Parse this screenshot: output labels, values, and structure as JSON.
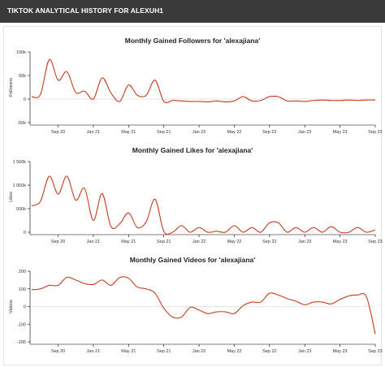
{
  "header": {
    "title": "TIKTOK ANALYTICAL HISTORY FOR ALEXUH1"
  },
  "colors": {
    "header_bg": "#3a3a3a",
    "series": "#c63c1b"
  },
  "chart_data": [
    {
      "type": "line",
      "title": "Monthly Gained Followers for 'alexajiana'",
      "ylabel": "Followers",
      "ylim": [
        -50000,
        100000
      ],
      "yticks": [
        -50000,
        0,
        50000,
        100000
      ],
      "ytick_labels": [
        "-50k",
        "0",
        "50k",
        "100k"
      ],
      "xlim": [
        "2020-06",
        "2023-09"
      ],
      "xticks": [
        "2020-09",
        "2021-01",
        "2021-05",
        "2021-09",
        "2022-01",
        "2022-05",
        "2022-09",
        "2023-01",
        "2023-05",
        "2023-09"
      ],
      "xtick_labels": [
        "Sep 20",
        "Jan 21",
        "May 21",
        "Sep 21",
        "Jan 22",
        "May 22",
        "Sep 22",
        "Jan 23",
        "May 23",
        "Sep 23"
      ],
      "series": [
        {
          "x": [
            "2020-06",
            "2020-07",
            "2020-08",
            "2020-09",
            "2020-10",
            "2020-11",
            "2020-12",
            "2021-01",
            "2021-02",
            "2021-03",
            "2021-04",
            "2021-05",
            "2021-06",
            "2021-07",
            "2021-08",
            "2021-09",
            "2021-10",
            "2021-11",
            "2021-12",
            "2022-01",
            "2022-02",
            "2022-03",
            "2022-04",
            "2022-05",
            "2022-06",
            "2022-07",
            "2022-08",
            "2022-09",
            "2022-10",
            "2022-11",
            "2022-12",
            "2023-01",
            "2023-02",
            "2023-03",
            "2023-04",
            "2023-05",
            "2023-06",
            "2023-07",
            "2023-08",
            "2023-09"
          ],
          "values": [
            5000,
            10000,
            84000,
            40000,
            58000,
            14000,
            17000,
            0,
            45000,
            13000,
            -5000,
            30000,
            8000,
            8000,
            40000,
            -5000,
            -3000,
            -4000,
            -5000,
            -5000,
            -6000,
            -4000,
            -6000,
            -4000,
            5000,
            -4000,
            -3000,
            5000,
            5000,
            -4000,
            -4000,
            -5000,
            -3000,
            -2000,
            -3000,
            -3000,
            -2000,
            -3000,
            -2000,
            -2000
          ]
        }
      ]
    },
    {
      "type": "line",
      "title": "Monthly Gained Likes for 'alexajiana'",
      "ylabel": "Likes",
      "ylim": [
        0,
        1500000
      ],
      "yticks": [
        0,
        500000,
        1000000,
        1500000
      ],
      "ytick_labels": [
        "0",
        "500k",
        "1 000k",
        "1 500k"
      ],
      "xlim": [
        "2020-06",
        "2023-09"
      ],
      "xticks": [
        "2020-09",
        "2021-01",
        "2021-05",
        "2021-09",
        "2022-01",
        "2022-05",
        "2022-09",
        "2023-01",
        "2023-05",
        "2023-09"
      ],
      "xtick_labels": [
        "Sep 20",
        "Jan 21",
        "May 21",
        "Sep 21",
        "Jan 22",
        "May 22",
        "Sep 22",
        "Jan 23",
        "May 23",
        "Sep 23"
      ],
      "series": [
        {
          "x": [
            "2020-06",
            "2020-07",
            "2020-08",
            "2020-09",
            "2020-10",
            "2020-11",
            "2020-12",
            "2021-01",
            "2021-02",
            "2021-03",
            "2021-04",
            "2021-05",
            "2021-06",
            "2021-07",
            "2021-08",
            "2021-09",
            "2021-10",
            "2021-11",
            "2021-12",
            "2022-01",
            "2022-02",
            "2022-03",
            "2022-04",
            "2022-05",
            "2022-06",
            "2022-07",
            "2022-08",
            "2022-09",
            "2022-10",
            "2022-11",
            "2022-12",
            "2023-01",
            "2023-02",
            "2023-03",
            "2023-04",
            "2023-05",
            "2023-06",
            "2023-07",
            "2023-08",
            "2023-09"
          ],
          "values": [
            560000,
            660000,
            1190000,
            810000,
            1190000,
            680000,
            930000,
            250000,
            820000,
            120000,
            180000,
            410000,
            100000,
            220000,
            700000,
            20000,
            0,
            140000,
            0,
            100000,
            0,
            20000,
            0,
            140000,
            0,
            100000,
            0,
            200000,
            200000,
            0,
            100000,
            0,
            100000,
            0,
            120000,
            0,
            0,
            100000,
            0,
            50000
          ]
        }
      ]
    },
    {
      "type": "line",
      "title": "Monthly Gained Videos for 'alexajiana'",
      "ylabel": "Videos",
      "ylim": [
        -200,
        200
      ],
      "yticks": [
        -200,
        -100,
        0,
        100,
        200
      ],
      "ytick_labels": [
        "-200",
        "-100",
        "0",
        "100",
        "200"
      ],
      "xlim": [
        "2020-06",
        "2023-09"
      ],
      "xticks": [
        "2020-09",
        "2021-01",
        "2021-05",
        "2021-09",
        "2022-01",
        "2022-05",
        "2022-09",
        "2023-01",
        "2023-05",
        "2023-09"
      ],
      "xtick_labels": [
        "Sep 20",
        "Jan 21",
        "May 21",
        "Sep 21",
        "Jan 22",
        "May 22",
        "Sep 22",
        "Jan 23",
        "May 23",
        "Sep 23"
      ],
      "series": [
        {
          "x": [
            "2020-06",
            "2020-07",
            "2020-08",
            "2020-09",
            "2020-10",
            "2020-11",
            "2020-12",
            "2021-01",
            "2021-02",
            "2021-03",
            "2021-04",
            "2021-05",
            "2021-06",
            "2021-07",
            "2021-08",
            "2021-09",
            "2021-10",
            "2021-11",
            "2021-12",
            "2022-01",
            "2022-02",
            "2022-03",
            "2022-04",
            "2022-05",
            "2022-06",
            "2022-07",
            "2022-08",
            "2022-09",
            "2022-10",
            "2022-11",
            "2022-12",
            "2023-01",
            "2023-02",
            "2023-03",
            "2023-04",
            "2023-05",
            "2023-06",
            "2023-07",
            "2023-08",
            "2023-09"
          ],
          "values": [
            95,
            100,
            120,
            120,
            165,
            150,
            130,
            125,
            150,
            120,
            165,
            160,
            110,
            100,
            75,
            -10,
            -60,
            -60,
            -5,
            -20,
            -40,
            -30,
            -30,
            -40,
            5,
            25,
            25,
            75,
            65,
            45,
            30,
            10,
            25,
            25,
            15,
            40,
            60,
            65,
            55,
            -155
          ]
        }
      ]
    }
  ]
}
